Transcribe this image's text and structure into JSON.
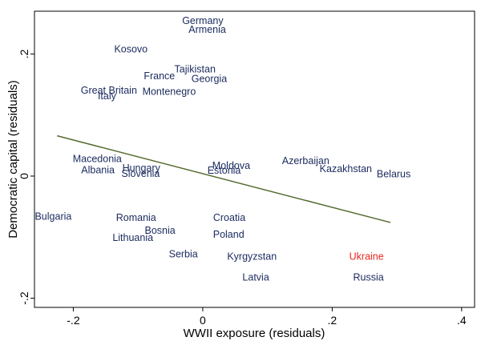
{
  "chart_data": {
    "type": "scatter",
    "xlabel": "WWII exposure (residuals)",
    "ylabel": "Democratic capital (residuals)",
    "xlim": [
      -0.26,
      0.42
    ],
    "ylim": [
      -0.215,
      0.27
    ],
    "x_ticks": [
      -0.2,
      0,
      0.2,
      0.4
    ],
    "x_tick_labels": [
      "-.2",
      "0",
      ".2",
      ".4"
    ],
    "y_ticks": [
      -0.2,
      0,
      0.2
    ],
    "y_tick_labels": [
      "-.2",
      "0",
      ".2"
    ],
    "grid": false,
    "colors": {
      "default_label": "#1a2a5e",
      "highlight_label": "#e8271e",
      "fit_line": "#556b2f",
      "frame": "#000000"
    },
    "fit_line": {
      "x": [
        -0.225,
        0.29
      ],
      "y": [
        0.066,
        -0.076
      ]
    },
    "points": [
      {
        "label": "Germany",
        "x": 0.0,
        "y": 0.254,
        "highlight": false
      },
      {
        "label": "Armenia",
        "x": 0.007,
        "y": 0.24,
        "highlight": false
      },
      {
        "label": "Kosovo",
        "x": -0.111,
        "y": 0.208,
        "highlight": false
      },
      {
        "label": "Tajikistan",
        "x": -0.012,
        "y": 0.175,
        "highlight": false
      },
      {
        "label": "France",
        "x": -0.067,
        "y": 0.164,
        "highlight": false
      },
      {
        "label": "Georgia",
        "x": 0.01,
        "y": 0.159,
        "highlight": false
      },
      {
        "label": "Great Britain",
        "x": -0.145,
        "y": 0.14,
        "highlight": false
      },
      {
        "label": "Montenegro",
        "x": -0.052,
        "y": 0.138,
        "highlight": false
      },
      {
        "label": "Italy",
        "x": -0.148,
        "y": 0.131,
        "highlight": false
      },
      {
        "label": "Azerbaijan",
        "x": 0.159,
        "y": 0.025,
        "highlight": false
      },
      {
        "label": "Macedonia",
        "x": -0.163,
        "y": 0.028,
        "highlight": false
      },
      {
        "label": "Moldova",
        "x": 0.044,
        "y": 0.017,
        "highlight": false
      },
      {
        "label": "Kazakhstan",
        "x": 0.221,
        "y": 0.012,
        "highlight": false
      },
      {
        "label": "Hungary",
        "x": -0.095,
        "y": 0.013,
        "highlight": false
      },
      {
        "label": "Albania",
        "x": -0.162,
        "y": 0.01,
        "highlight": false
      },
      {
        "label": "Estonia",
        "x": 0.033,
        "y": 0.009,
        "highlight": false
      },
      {
        "label": "Slovenia",
        "x": -0.096,
        "y": 0.004,
        "highlight": false
      },
      {
        "label": "Belarus",
        "x": 0.295,
        "y": 0.003,
        "highlight": false
      },
      {
        "label": "Bulgaria",
        "x": -0.231,
        "y": -0.066,
        "highlight": false
      },
      {
        "label": "Romania",
        "x": -0.103,
        "y": -0.068,
        "highlight": false
      },
      {
        "label": "Croatia",
        "x": 0.041,
        "y": -0.068,
        "highlight": false
      },
      {
        "label": "Bosnia",
        "x": -0.066,
        "y": -0.089,
        "highlight": false
      },
      {
        "label": "Poland",
        "x": 0.04,
        "y": -0.096,
        "highlight": false
      },
      {
        "label": "Lithuania",
        "x": -0.108,
        "y": -0.101,
        "highlight": false
      },
      {
        "label": "Serbia",
        "x": -0.03,
        "y": -0.128,
        "highlight": false
      },
      {
        "label": "Kyrgyzstan",
        "x": 0.076,
        "y": -0.132,
        "highlight": false
      },
      {
        "label": "Ukraine",
        "x": 0.253,
        "y": -0.132,
        "highlight": true
      },
      {
        "label": "Latvia",
        "x": 0.082,
        "y": -0.166,
        "highlight": false
      },
      {
        "label": "Russia",
        "x": 0.256,
        "y": -0.166,
        "highlight": false
      }
    ]
  }
}
